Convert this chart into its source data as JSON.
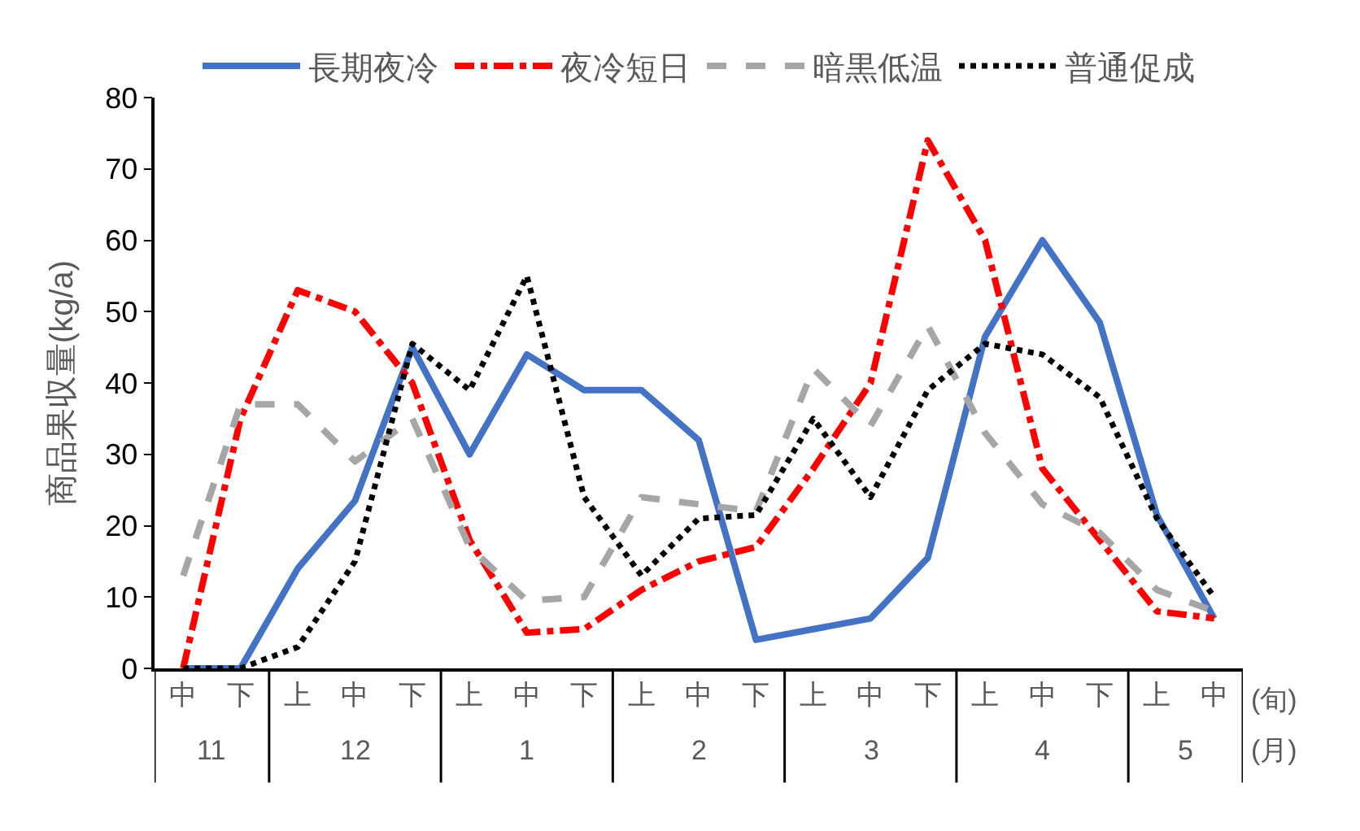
{
  "chart_data": {
    "type": "line",
    "ylabel": "商品果収量(kg/a)",
    "categories": [
      "中",
      "下",
      "上",
      "中",
      "下",
      "上",
      "中",
      "下",
      "上",
      "中",
      "下",
      "上",
      "中",
      "下",
      "上",
      "中",
      "下",
      "上",
      "中"
    ],
    "annotations": [
      "11",
      "12",
      "1",
      "2",
      "3",
      "4",
      "5",
      "(旬)",
      "(月)"
    ],
    "series": [
      {
        "name": "長期夜冷",
        "color": "#4472c4",
        "line_style": "solid",
        "values": [
          0,
          0,
          14,
          23.5,
          45,
          30,
          44,
          39,
          39,
          32,
          4,
          5.5,
          7,
          15.5,
          46.5,
          60,
          48.5,
          21.5,
          7
        ]
      },
      {
        "name": "夜冷短日",
        "color": "#ff0000",
        "line_style": "dashdot",
        "values": [
          0,
          35,
          53,
          50,
          40,
          18,
          5,
          5.5,
          11,
          15,
          17,
          28,
          40,
          74,
          60,
          28,
          18,
          8,
          7
        ]
      },
      {
        "name": "暗黒低温",
        "color": "#a6a6a6",
        "line_style": "dashed",
        "values": [
          13,
          37,
          37,
          29,
          35,
          17,
          9.5,
          10,
          24,
          23,
          22,
          42,
          34,
          48,
          33,
          23,
          19,
          11,
          8
        ]
      },
      {
        "name": "普通促成",
        "color": "#000000",
        "line_style": "dotted",
        "values": [
          0,
          0,
          3,
          15,
          45.5,
          39,
          55,
          24,
          13,
          21,
          21.5,
          35,
          24,
          39,
          45.5,
          44,
          38,
          21,
          10
        ]
      }
    ],
    "ylim": [
      0,
      80
    ],
    "yticks": [
      0,
      10,
      20,
      30,
      40,
      50,
      60,
      70,
      80
    ],
    "grid": false,
    "legend": "top",
    "marker": "none"
  }
}
